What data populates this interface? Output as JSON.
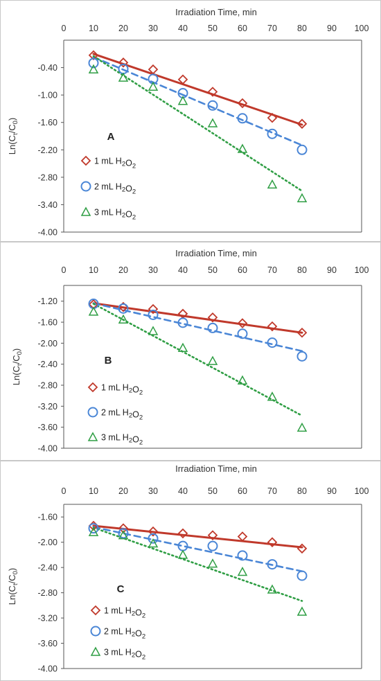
{
  "chart_data": [
    {
      "type": "scatter",
      "panel_label": "A",
      "xlabel": "Irradiation Time, min",
      "ylabel": "Ln(Ct/C0)",
      "xlim": [
        0,
        100
      ],
      "ylim": [
        -4.0,
        0.2
      ],
      "xticks": [
        0,
        10,
        20,
        30,
        40,
        50,
        60,
        70,
        80,
        90,
        100
      ],
      "yticks": [
        -0.4,
        -1.0,
        -1.6,
        -2.2,
        -2.8,
        -3.4,
        -4.0
      ],
      "ytick_labels": [
        "-0.40",
        "-1.00",
        "-1.60",
        "-2.20",
        "-2.80",
        "-3.40",
        "-4.00"
      ],
      "grid": false,
      "legend_position": "middle-left",
      "series": [
        {
          "name": "1 mL H2O2",
          "marker": "diamond",
          "color": "#c0392b",
          "line_style": "solid",
          "x": [
            10,
            20,
            30,
            40,
            50,
            60,
            70,
            80
          ],
          "y": [
            -0.13,
            -0.29,
            -0.44,
            -0.66,
            -0.93,
            -1.18,
            -1.5,
            -1.63
          ],
          "fit": [
            [
              10,
              -0.1
            ],
            [
              80,
              -1.65
            ]
          ]
        },
        {
          "name": "2 mL H2O2",
          "marker": "circle",
          "color": "#4a86d6",
          "line_style": "dashed",
          "x": [
            10,
            20,
            30,
            40,
            50,
            60,
            70,
            80
          ],
          "y": [
            -0.3,
            -0.43,
            -0.65,
            -0.96,
            -1.23,
            -1.51,
            -1.85,
            -2.2
          ],
          "fit": [
            [
              10,
              -0.17
            ],
            [
              80,
              -2.1
            ]
          ]
        },
        {
          "name": "3 mL H2O2",
          "marker": "triangle",
          "color": "#2f9e44",
          "line_style": "dotted",
          "x": [
            10,
            20,
            30,
            40,
            50,
            60,
            70,
            80
          ],
          "y": [
            -0.44,
            -0.62,
            -0.82,
            -1.13,
            -1.62,
            -2.18,
            -2.96,
            -3.26
          ],
          "fit": [
            [
              10,
              -0.15
            ],
            [
              80,
              -3.1
            ]
          ]
        }
      ]
    },
    {
      "type": "scatter",
      "panel_label": "B",
      "xlabel": "Irradiation Time, min",
      "ylabel": "Ln(Ct/C0)",
      "xlim": [
        0,
        100
      ],
      "ylim": [
        -4.0,
        -0.9
      ],
      "xticks": [
        0,
        10,
        20,
        30,
        40,
        50,
        60,
        70,
        80,
        90,
        100
      ],
      "yticks": [
        -1.2,
        -1.6,
        -2.0,
        -2.4,
        -2.8,
        -3.2,
        -3.6,
        -4.0
      ],
      "ytick_labels": [
        "-1.20",
        "-1.60",
        "-2.00",
        "-2.40",
        "-2.80",
        "-3.20",
        "-3.60",
        "-4.00"
      ],
      "grid": false,
      "legend_position": "lower-left",
      "series": [
        {
          "name": "1 mL H2O2",
          "marker": "diamond",
          "color": "#c0392b",
          "line_style": "solid",
          "x": [
            10,
            20,
            30,
            40,
            50,
            60,
            70,
            80
          ],
          "y": [
            -1.26,
            -1.31,
            -1.35,
            -1.44,
            -1.51,
            -1.62,
            -1.68,
            -1.8
          ],
          "fit": [
            [
              10,
              -1.24
            ],
            [
              80,
              -1.8
            ]
          ]
        },
        {
          "name": "2 mL H2O2",
          "marker": "circle",
          "color": "#4a86d6",
          "line_style": "dashed",
          "x": [
            10,
            20,
            30,
            40,
            50,
            60,
            70,
            80
          ],
          "y": [
            -1.25,
            -1.34,
            -1.46,
            -1.61,
            -1.71,
            -1.82,
            -1.99,
            -2.25
          ],
          "fit": [
            [
              10,
              -1.24
            ],
            [
              80,
              -2.15
            ]
          ]
        },
        {
          "name": "3 mL H2O2",
          "marker": "triangle",
          "color": "#2f9e44",
          "line_style": "dotted",
          "x": [
            10,
            20,
            30,
            40,
            50,
            60,
            70,
            80
          ],
          "y": [
            -1.4,
            -1.55,
            -1.77,
            -2.09,
            -2.34,
            -2.71,
            -3.02,
            -3.61
          ],
          "fit": [
            [
              10,
              -1.25
            ],
            [
              80,
              -3.38
            ]
          ]
        }
      ]
    },
    {
      "type": "scatter",
      "panel_label": "C",
      "xlabel": "Irradiation Time, min",
      "ylabel": "Ln(Ct/C0)",
      "xlim": [
        0,
        100
      ],
      "ylim": [
        -4.0,
        -1.4
      ],
      "xticks": [
        0,
        10,
        20,
        30,
        40,
        50,
        60,
        70,
        80,
        90,
        100
      ],
      "yticks": [
        -1.6,
        -2.0,
        -2.4,
        -2.8,
        -3.2,
        -3.6,
        -4.0
      ],
      "ytick_labels": [
        "-1.60",
        "-2.00",
        "-2.40",
        "-2.80",
        "-3.20",
        "-3.60",
        "-4.00"
      ],
      "grid": false,
      "legend_position": "lower-left",
      "series": [
        {
          "name": "1 mL H2O2",
          "marker": "diamond",
          "color": "#c0392b",
          "line_style": "solid",
          "x": [
            10,
            20,
            30,
            40,
            50,
            60,
            70,
            80
          ],
          "y": [
            -1.74,
            -1.78,
            -1.83,
            -1.86,
            -1.89,
            -1.91,
            -2.0,
            -2.1
          ],
          "fit": [
            [
              10,
              -1.74
            ],
            [
              80,
              -2.08
            ]
          ]
        },
        {
          "name": "2 mL H2O2",
          "marker": "circle",
          "color": "#4a86d6",
          "line_style": "dashed",
          "x": [
            10,
            20,
            30,
            40,
            50,
            60,
            70,
            80
          ],
          "y": [
            -1.78,
            -1.86,
            -1.94,
            -2.06,
            -2.06,
            -2.21,
            -2.35,
            -2.53
          ],
          "fit": [
            [
              10,
              -1.76
            ],
            [
              80,
              -2.46
            ]
          ]
        },
        {
          "name": "3 mL H2O2",
          "marker": "triangle",
          "color": "#2f9e44",
          "line_style": "dotted",
          "x": [
            10,
            20,
            30,
            40,
            50,
            60,
            70,
            80
          ],
          "y": [
            -1.84,
            -1.89,
            -2.02,
            -2.2,
            -2.34,
            -2.47,
            -2.75,
            -3.1
          ],
          "fit": [
            [
              10,
              -1.77
            ],
            [
              80,
              -2.93
            ]
          ]
        }
      ]
    }
  ]
}
